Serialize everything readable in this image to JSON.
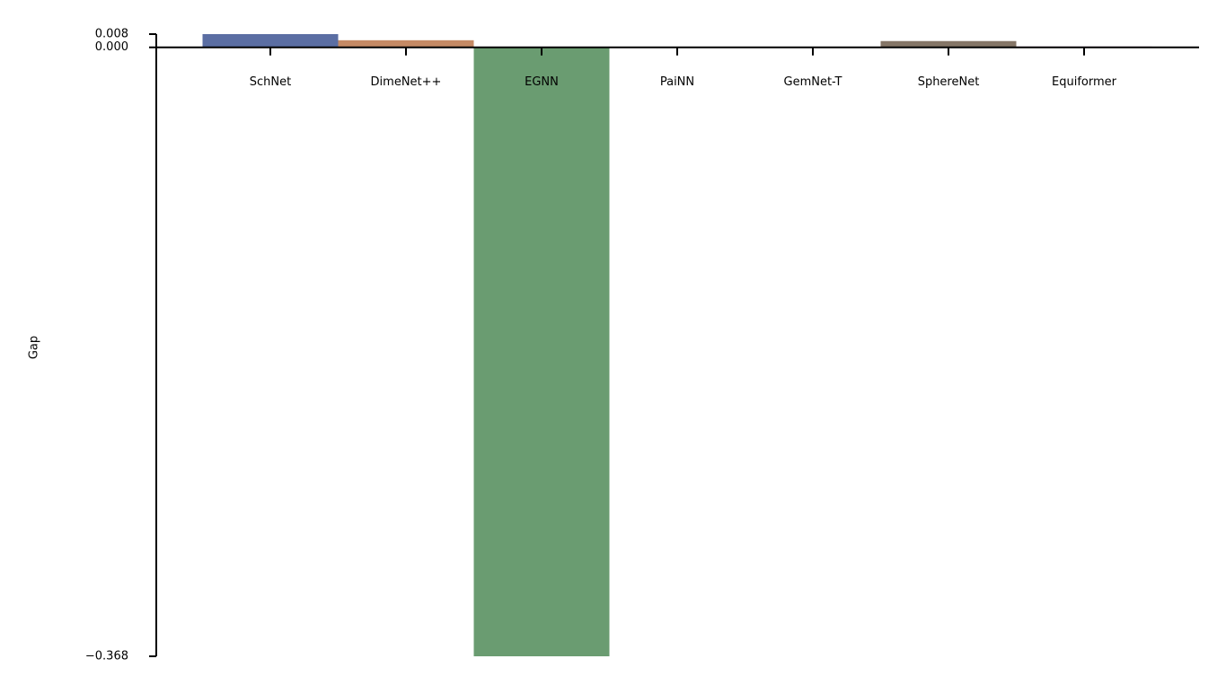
{
  "chart_data": {
    "type": "bar",
    "y_label": "Gap",
    "categories": [
      "SchNet",
      "DimeNet++",
      "EGNN",
      "PaiNN",
      "GemNet-T",
      "SphereNet",
      "Equiformer"
    ],
    "values": [
      0.008,
      0.0043,
      -0.368,
      0,
      0,
      0.0038,
      0.0005
    ],
    "colors": [
      "#5b6ea3",
      "#c58a65",
      "#6a9c71",
      "#b55d60",
      "#857aab",
      "#857667",
      "#d08dc6"
    ],
    "ylim": [
      -0.368,
      0.008
    ],
    "yticks": [
      {
        "value": 0.008,
        "label": "0.008"
      },
      {
        "value": 0,
        "label": "0.000"
      },
      {
        "value": -0.368,
        "label": "−0.368"
      }
    ],
    "grid": false
  }
}
